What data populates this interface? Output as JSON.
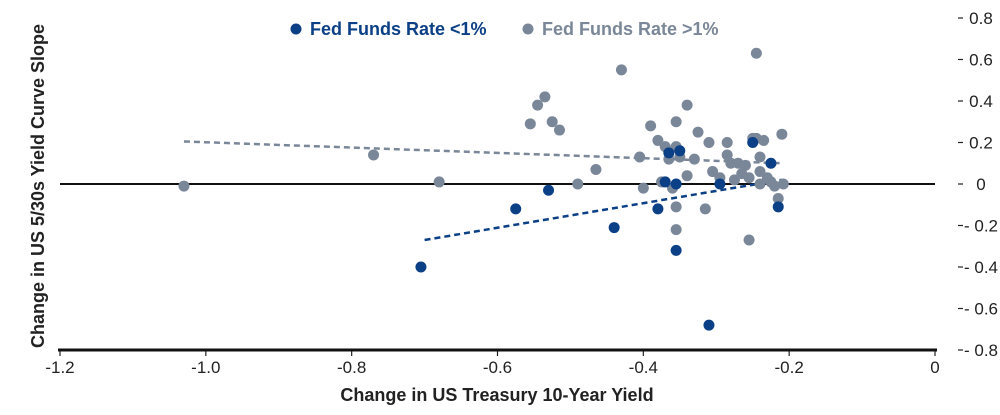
{
  "chart_data": {
    "type": "scatter",
    "title": "",
    "xlabel": "Change in US Treasury 10-Year Yield",
    "ylabel": "Change in US 5/30s Yield Curve Slope",
    "xlim": [
      -1.2,
      0
    ],
    "ylim": [
      -0.8,
      0.8
    ],
    "x_ticks": [
      -1.2,
      -1.0,
      -0.8,
      -0.6,
      -0.4,
      -0.2,
      0
    ],
    "x_tick_labels": [
      "-1.2",
      "-1.0",
      "-0.8",
      "-0.6",
      "-0.4",
      "-0.2",
      "0"
    ],
    "y_ticks": [
      0.8,
      0.6,
      0.4,
      0.2,
      0,
      -0.2,
      -0.4,
      -0.6,
      -0.8
    ],
    "y_tick_labels": [
      "0.8",
      "0.6",
      "0.4",
      "0.2",
      "0",
      "- 0.2",
      "- 0.4",
      "- 0.6",
      "- 0.8"
    ],
    "y_axis_side": "right",
    "legend_position": "top-center",
    "series": [
      {
        "name": "Fed Funds Rate <1%",
        "color": "#0b3f86",
        "points": [
          {
            "x": -0.705,
            "y": -0.4
          },
          {
            "x": -0.575,
            "y": -0.12
          },
          {
            "x": -0.53,
            "y": -0.03
          },
          {
            "x": -0.44,
            "y": -0.21
          },
          {
            "x": -0.38,
            "y": -0.12
          },
          {
            "x": -0.37,
            "y": 0.01
          },
          {
            "x": -0.365,
            "y": 0.15
          },
          {
            "x": -0.355,
            "y": 0.0
          },
          {
            "x": -0.355,
            "y": -0.32
          },
          {
            "x": -0.35,
            "y": 0.16
          },
          {
            "x": -0.31,
            "y": -0.68
          },
          {
            "x": -0.295,
            "y": 0.0
          },
          {
            "x": -0.25,
            "y": 0.2
          },
          {
            "x": -0.225,
            "y": 0.1
          },
          {
            "x": -0.215,
            "y": -0.11
          }
        ]
      },
      {
        "name": "Fed Funds Rate >1%",
        "color": "#7a8799",
        "points": [
          {
            "x": -1.03,
            "y": -0.01
          },
          {
            "x": -0.77,
            "y": 0.14
          },
          {
            "x": -0.68,
            "y": 0.01
          },
          {
            "x": -0.555,
            "y": 0.29
          },
          {
            "x": -0.545,
            "y": 0.38
          },
          {
            "x": -0.535,
            "y": 0.42
          },
          {
            "x": -0.525,
            "y": 0.3
          },
          {
            "x": -0.515,
            "y": 0.26
          },
          {
            "x": -0.49,
            "y": 0.0
          },
          {
            "x": -0.465,
            "y": 0.07
          },
          {
            "x": -0.43,
            "y": 0.55
          },
          {
            "x": -0.405,
            "y": 0.13
          },
          {
            "x": -0.4,
            "y": -0.02
          },
          {
            "x": -0.39,
            "y": 0.28
          },
          {
            "x": -0.38,
            "y": 0.21
          },
          {
            "x": -0.375,
            "y": 0.01
          },
          {
            "x": -0.37,
            "y": 0.18
          },
          {
            "x": -0.365,
            "y": 0.12
          },
          {
            "x": -0.36,
            "y": -0.02
          },
          {
            "x": -0.355,
            "y": 0.3
          },
          {
            "x": -0.355,
            "y": 0.18
          },
          {
            "x": -0.355,
            "y": -0.11
          },
          {
            "x": -0.355,
            "y": -0.22
          },
          {
            "x": -0.35,
            "y": 0.13
          },
          {
            "x": -0.34,
            "y": 0.04
          },
          {
            "x": -0.34,
            "y": 0.38
          },
          {
            "x": -0.33,
            "y": 0.12
          },
          {
            "x": -0.325,
            "y": 0.25
          },
          {
            "x": -0.315,
            "y": -0.12
          },
          {
            "x": -0.31,
            "y": 0.2
          },
          {
            "x": -0.305,
            "y": 0.06
          },
          {
            "x": -0.295,
            "y": 0.03
          },
          {
            "x": -0.285,
            "y": 0.14
          },
          {
            "x": -0.285,
            "y": 0.2
          },
          {
            "x": -0.28,
            "y": 0.1
          },
          {
            "x": -0.275,
            "y": 0.02
          },
          {
            "x": -0.27,
            "y": 0.1
          },
          {
            "x": -0.265,
            "y": 0.05
          },
          {
            "x": -0.26,
            "y": 0.09
          },
          {
            "x": -0.255,
            "y": 0.03
          },
          {
            "x": -0.255,
            "y": -0.27
          },
          {
            "x": -0.25,
            "y": 0.22
          },
          {
            "x": -0.245,
            "y": 0.22
          },
          {
            "x": -0.245,
            "y": 0.63
          },
          {
            "x": -0.24,
            "y": 0.0
          },
          {
            "x": -0.24,
            "y": 0.06
          },
          {
            "x": -0.24,
            "y": 0.13
          },
          {
            "x": -0.235,
            "y": 0.21
          },
          {
            "x": -0.23,
            "y": 0.03
          },
          {
            "x": -0.225,
            "y": 0.01
          },
          {
            "x": -0.22,
            "y": -0.01
          },
          {
            "x": -0.215,
            "y": -0.07
          },
          {
            "x": -0.21,
            "y": 0.24
          },
          {
            "x": -0.208,
            "y": 0.0
          }
        ]
      }
    ],
    "trendlines": [
      {
        "series": "Fed Funds Rate <1%",
        "color": "#0b3f86",
        "from": [
          -0.7,
          -0.27
        ],
        "to": [
          -0.21,
          0.02
        ]
      },
      {
        "series": "Fed Funds Rate >1%",
        "color": "#7a8799",
        "from": [
          -1.03,
          0.205
        ],
        "to": [
          -0.21,
          0.1
        ]
      }
    ]
  }
}
